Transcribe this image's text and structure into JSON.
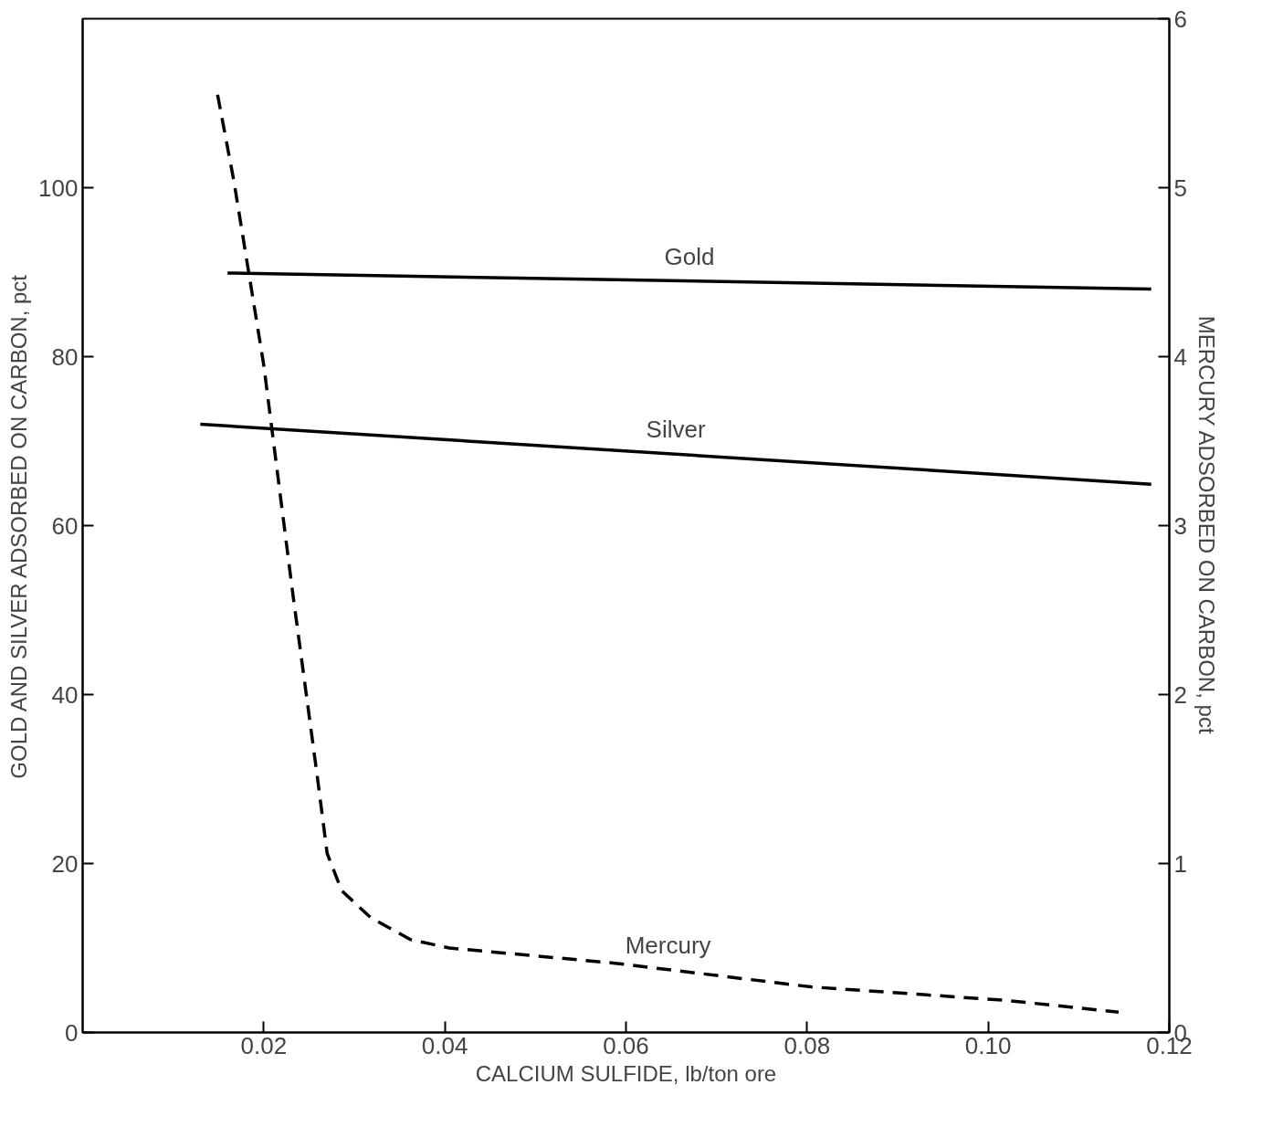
{
  "chart_data": {
    "type": "line",
    "xlabel": "CALCIUM SULFIDE, lb/ton ore",
    "ylabel": "GOLD AND SILVER ADSORBED ON CARBON, pct",
    "y2label": "MERCURY ADSORBED ON CARBON, pct",
    "xlim": [
      0,
      0.12
    ],
    "xticks": [
      0.02,
      0.04,
      0.06,
      0.08,
      {
        "value": 0.1,
        "label": "0.10"
      },
      0.12
    ],
    "ylim": [
      0,
      120
    ],
    "yticks": [
      0,
      20,
      40,
      60,
      80,
      100
    ],
    "y2lim": [
      0,
      6
    ],
    "y2ticks": [
      0,
      1,
      2,
      3,
      4,
      5,
      6
    ],
    "grid": false,
    "marker": "none",
    "series": [
      {
        "name": "Gold",
        "color": "#000000",
        "line_style": "solid",
        "x": [
          0.016,
          0.118
        ],
        "values": [
          89.9,
          88.0
        ]
      },
      {
        "name": "Silver",
        "color": "#000000",
        "line_style": "solid",
        "x": [
          0.013,
          0.118
        ],
        "values": [
          72.0,
          64.9
        ]
      },
      {
        "name": "Mercury",
        "color": "#000000",
        "line_style": "dashed",
        "axis": "y2",
        "x": [
          0.0149,
          0.0167,
          0.02,
          0.0232,
          0.0259,
          0.027,
          0.0286,
          0.0318,
          0.0362,
          0.0405,
          0.0588,
          0.0804,
          0.102,
          0.1144
        ],
        "values": [
          5.55,
          5.04,
          3.95,
          2.6,
          1.52,
          1.06,
          0.84,
          0.68,
          0.55,
          0.5,
          0.41,
          0.27,
          0.19,
          0.12
        ]
      }
    ]
  }
}
